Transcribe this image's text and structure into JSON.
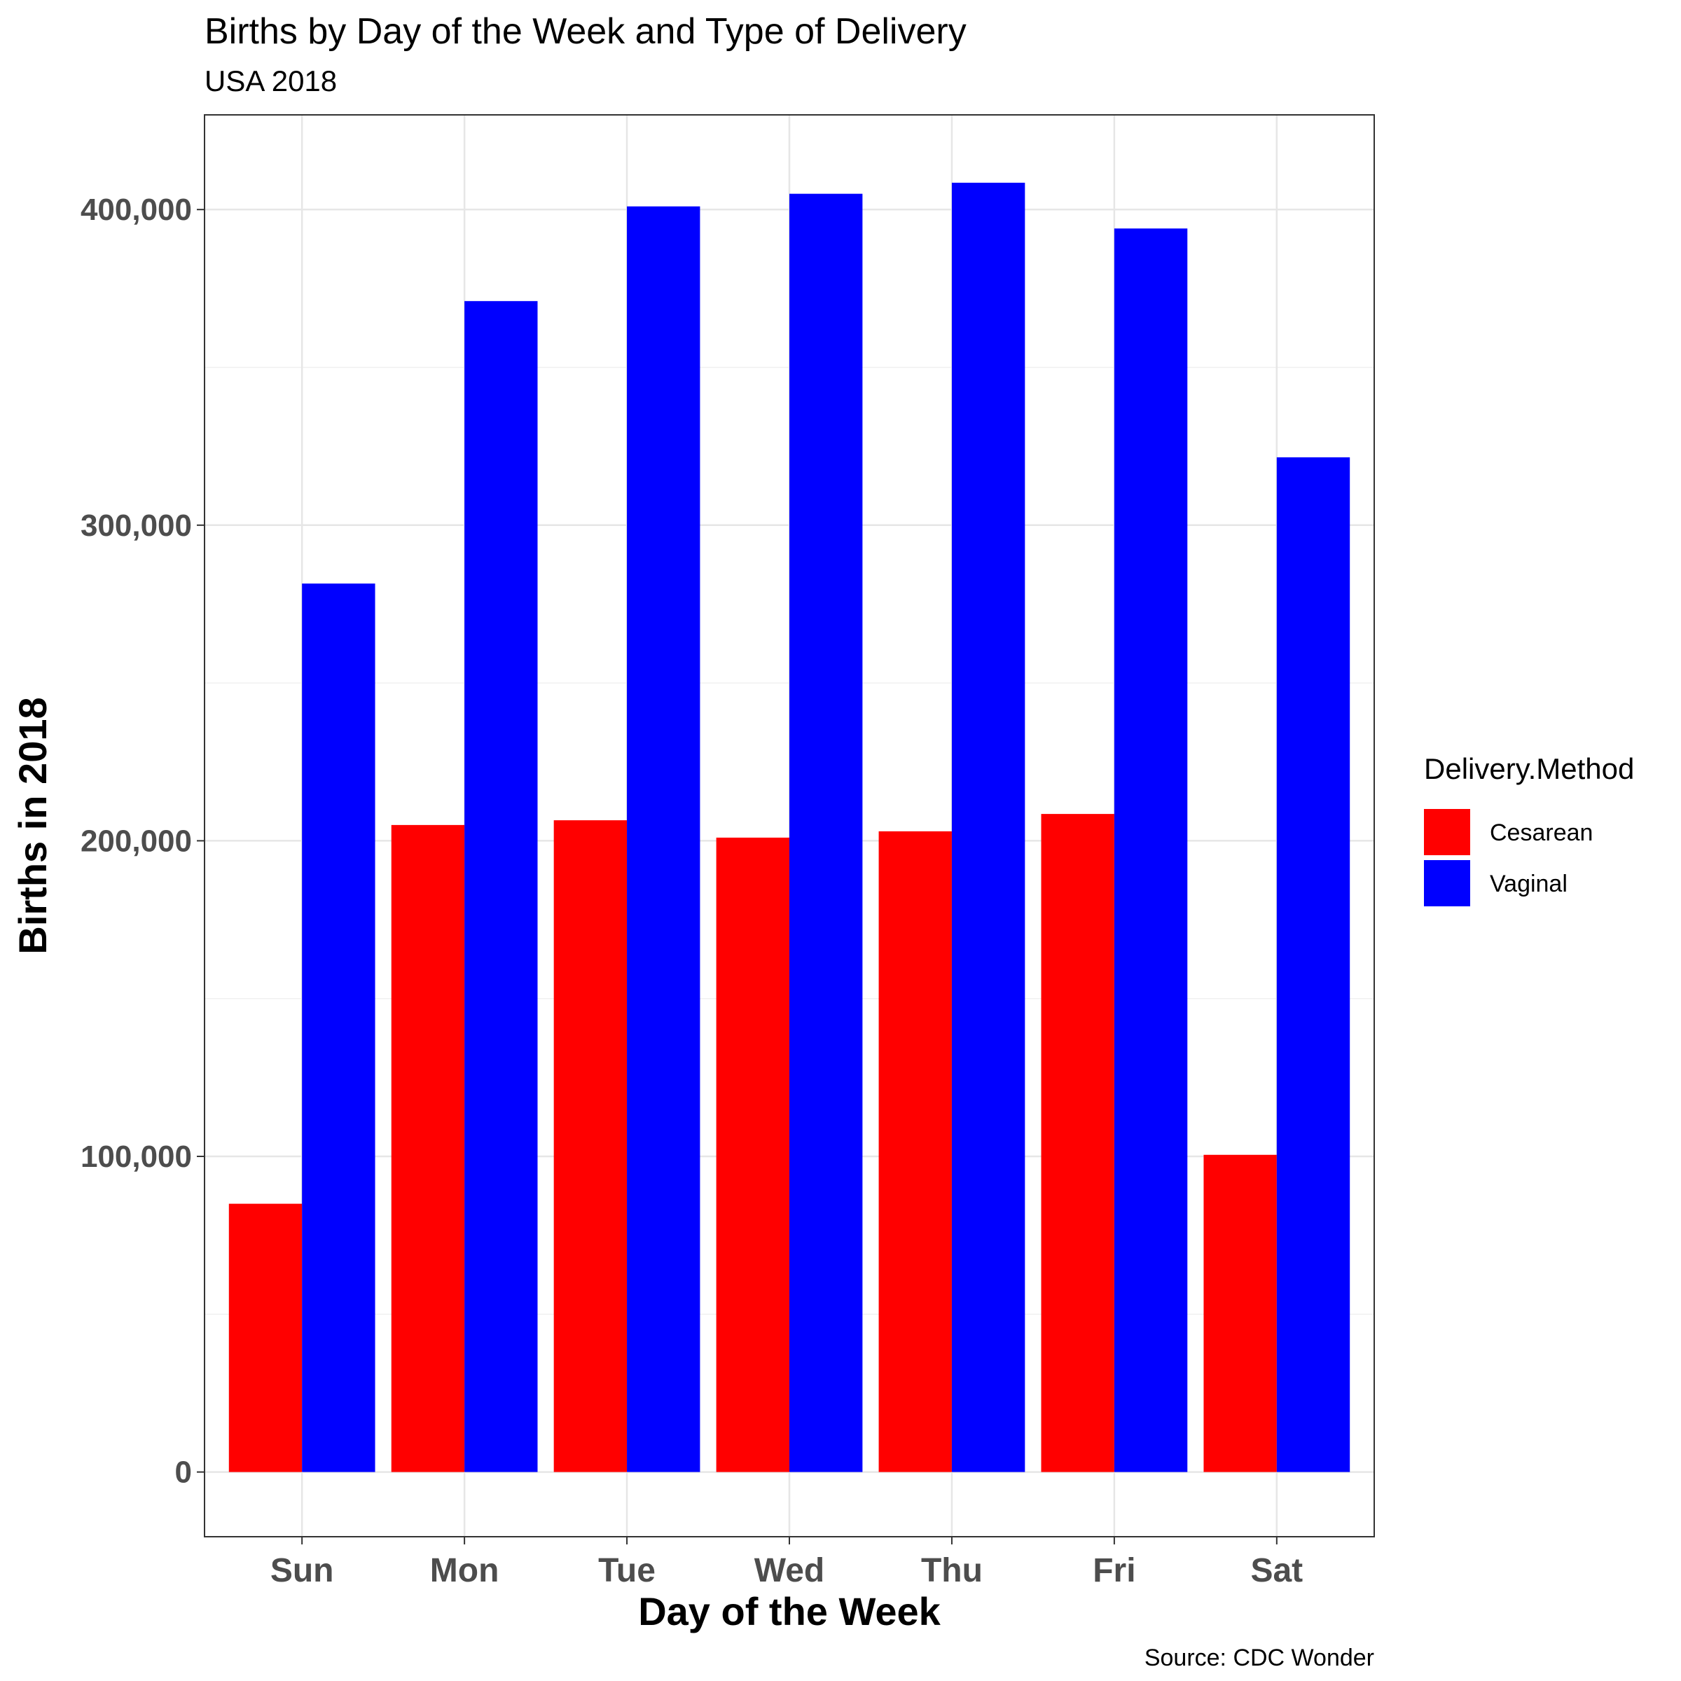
{
  "chart_data": {
    "type": "bar",
    "title": "Births by Day of the Week and Type of Delivery",
    "subtitle": "USA 2018",
    "xlabel": "Day of the Week",
    "ylabel": "Births in 2018",
    "caption": "Source: CDC Wonder",
    "categories": [
      "Sun",
      "Mon",
      "Tue",
      "Wed",
      "Thu",
      "Fri",
      "Sat"
    ],
    "series": [
      {
        "name": "Cesarean",
        "color": "#ff0000",
        "values": [
          85000,
          205000,
          206500,
          201000,
          203000,
          208500,
          100500
        ]
      },
      {
        "name": "Vaginal",
        "color": "#0000ff",
        "values": [
          281500,
          371000,
          401000,
          405000,
          408500,
          394000,
          321500
        ]
      }
    ],
    "ylim": [
      -20500,
      430000
    ],
    "yticks": [
      0,
      100000,
      200000,
      300000,
      400000
    ],
    "ytick_labels": [
      "0",
      "100,000",
      "200,000",
      "300,000",
      "400,000"
    ],
    "grid": true,
    "legend": {
      "title": "Delivery.Method",
      "position": "right"
    }
  }
}
